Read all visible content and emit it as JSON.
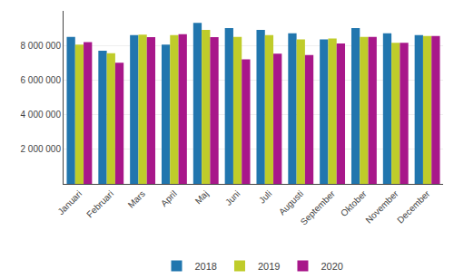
{
  "chart_data": {
    "type": "bar",
    "categories": [
      "Januari",
      "Februari",
      "Mars",
      "April",
      "Maj",
      "Juni",
      "Juli",
      "Augusti",
      "September",
      "Oktober",
      "November",
      "December"
    ],
    "series": [
      {
        "name": "2018",
        "color": "#2176ae",
        "values": [
          8500000,
          7700000,
          8600000,
          8050000,
          9300000,
          9000000,
          8900000,
          8700000,
          8350000,
          9000000,
          8700000,
          8600000
        ]
      },
      {
        "name": "2019",
        "color": "#bfcc2a",
        "values": [
          8050000,
          7550000,
          8620000,
          8600000,
          8900000,
          8500000,
          8600000,
          8350000,
          8400000,
          8500000,
          8150000,
          8550000
        ]
      },
      {
        "name": "2020",
        "color": "#a8178a",
        "values": [
          8200000,
          7000000,
          8480000,
          8650000,
          8480000,
          7200000,
          7520000,
          7450000,
          8120000,
          8500000,
          8150000,
          8550000
        ]
      }
    ],
    "ylim": [
      0,
      10000000
    ],
    "yticks": [
      {
        "value": 2000000,
        "label": "2 000 000"
      },
      {
        "value": 4000000,
        "label": "4 000 000"
      },
      {
        "value": 6000000,
        "label": "6 000 000"
      },
      {
        "value": 8000000,
        "label": "8 000 000"
      }
    ],
    "grid": true,
    "legend": "bottom"
  }
}
